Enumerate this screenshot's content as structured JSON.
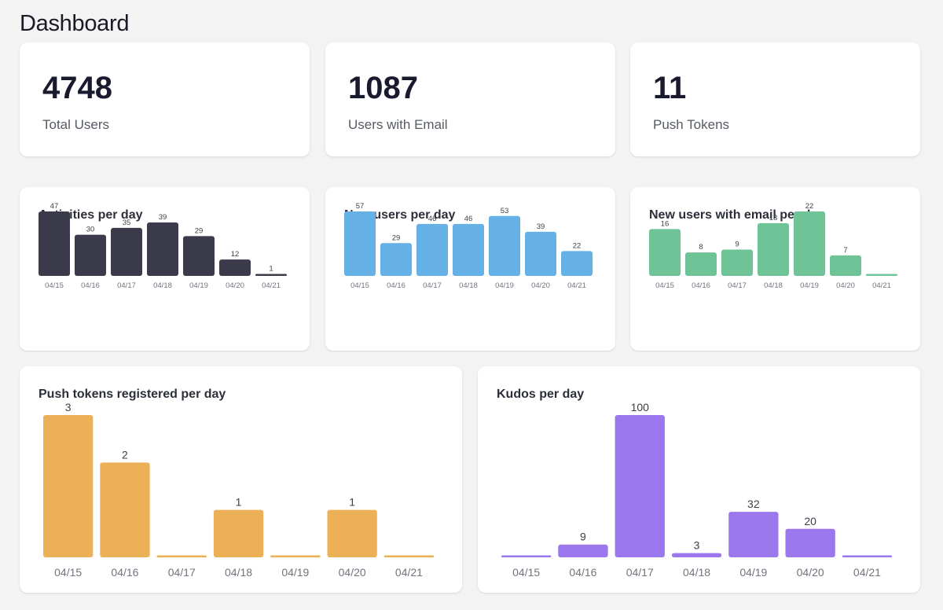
{
  "page": {
    "title": "Dashboard"
  },
  "stats": [
    {
      "value": "4748",
      "label": "Total Users"
    },
    {
      "value": "1087",
      "label": "Users with Email"
    },
    {
      "value": "11",
      "label": "Push Tokens"
    }
  ],
  "colors": {
    "activities": "#3b3a4a",
    "new_users": "#66b0e8",
    "new_users_email": "#6ec497",
    "push_tokens": "#ecb156",
    "kudos": "#9b77ee"
  },
  "chart_data": [
    {
      "type": "bar",
      "title": "Activities per day",
      "categories": [
        "04/15",
        "04/16",
        "04/17",
        "04/18",
        "04/19",
        "04/20",
        "04/21"
      ],
      "values": [
        47,
        30,
        35,
        39,
        29,
        12,
        1
      ],
      "color": "#3b3a4a"
    },
    {
      "type": "bar",
      "title": "New users per day",
      "categories": [
        "04/15",
        "04/16",
        "04/17",
        "04/18",
        "04/19",
        "04/20",
        "04/21"
      ],
      "values": [
        57,
        29,
        46,
        46,
        53,
        39,
        22
      ],
      "color": "#66b0e8"
    },
    {
      "type": "bar",
      "title": "New users with email per day",
      "categories": [
        "04/15",
        "04/16",
        "04/17",
        "04/18",
        "04/19",
        "04/20",
        "04/21"
      ],
      "values": [
        16,
        8,
        9,
        18,
        22,
        7,
        0
      ],
      "color": "#6ec497"
    },
    {
      "type": "bar",
      "title": "Push tokens registered per day",
      "categories": [
        "04/15",
        "04/16",
        "04/17",
        "04/18",
        "04/19",
        "04/20",
        "04/21"
      ],
      "values": [
        3,
        2,
        0,
        1,
        0,
        1,
        0
      ],
      "color": "#ecb156"
    },
    {
      "type": "bar",
      "title": "Kudos per day",
      "categories": [
        "04/15",
        "04/16",
        "04/17",
        "04/18",
        "04/19",
        "04/20",
        "04/21"
      ],
      "values": [
        0,
        9,
        100,
        3,
        32,
        20,
        0
      ],
      "color": "#9b77ee"
    }
  ]
}
